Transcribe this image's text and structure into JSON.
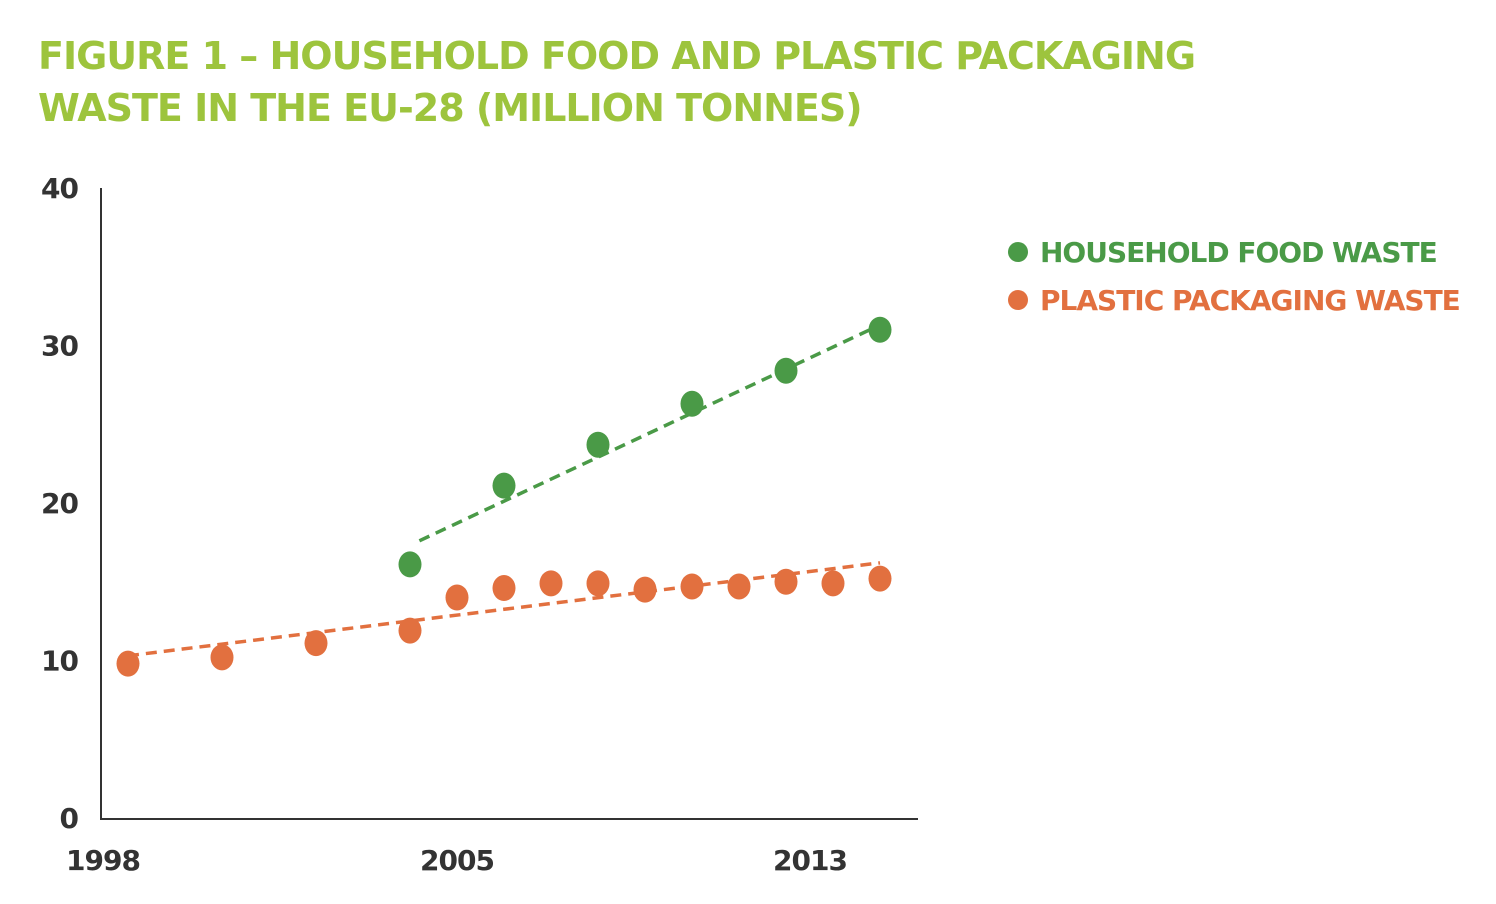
{
  "chart_data": {
    "type": "scatter",
    "title": "FIGURE 1 – HOUSEHOLD FOOD AND PLASTIC PACKAGING WASTE IN THE EU-28 (MILLION TONNES)",
    "xlabel": "",
    "ylabel": "",
    "ylim": [
      0,
      40
    ],
    "xlim": [
      1998,
      2015
    ],
    "yticks": [
      "0",
      "10",
      "20",
      "30",
      "40"
    ],
    "xticks": [
      "1998",
      "2005",
      "2013"
    ],
    "grid": false,
    "legend_position": "top-right",
    "series": [
      {
        "name": "HOUSEHOLD FOOD WASTE",
        "color": "#4a9a47",
        "x": [
          2004,
          2006,
          2008,
          2010,
          2012,
          2014
        ],
        "values": [
          16.1,
          21.1,
          23.7,
          26.3,
          28.4,
          31.0
        ],
        "trendline": {
          "x": [
            2004.2,
            2014
          ],
          "y": [
            17.6,
            31.3
          ]
        }
      },
      {
        "name": "PLASTIC PACKAGING WASTE",
        "color": "#e2703f",
        "x": [
          1998,
          2000,
          2002,
          2004,
          2005,
          2006,
          2007,
          2008,
          2009,
          2010,
          2011,
          2012,
          2013,
          2014
        ],
        "values": [
          9.8,
          10.2,
          11.1,
          11.9,
          14.0,
          14.6,
          14.9,
          14.9,
          14.5,
          14.7,
          14.7,
          15.0,
          14.9,
          15.2
        ],
        "trendline": {
          "x": [
            1998,
            2014
          ],
          "y": [
            10.3,
            16.2
          ]
        }
      }
    ]
  }
}
